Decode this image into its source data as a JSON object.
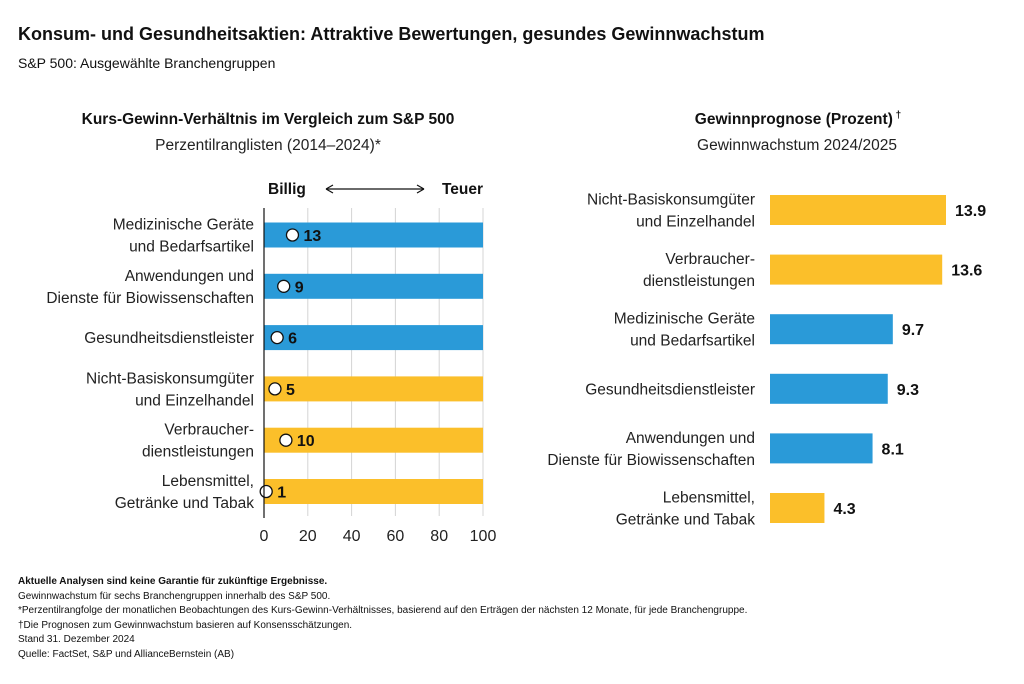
{
  "header": {
    "title": "Konsum- und Gesundheitsaktien: Attraktive Bewertungen, gesundes Gewinnwachstum",
    "subtitle": "S&P 500: Ausgewählte Branchengruppen"
  },
  "colors": {
    "blue": "#2a9ad8",
    "yellow": "#fbbf2a",
    "grid": "#d4d4d4"
  },
  "chart_data": [
    {
      "type": "bar",
      "title": "Kurs-Gewinn-Verhältnis im Vergleich zum S&P 500",
      "subtitle": "Perzentilranglisten (2014–2024)*",
      "scale_left_label": "Billig",
      "scale_right_label": "Teuer",
      "categories": [
        [
          "Medizinische Geräte",
          "und Bedarfsartikel"
        ],
        [
          "Anwendungen und",
          "Dienste für Biowissenschaften"
        ],
        [
          "Gesundheitsdienstleister"
        ],
        [
          "Nicht-Basiskonsumgüter",
          "und Einzelhandel"
        ],
        [
          "Verbraucher-",
          "dienstleistungen"
        ],
        [
          "Lebensmittel,",
          "Getränke und Tabak"
        ]
      ],
      "values": [
        13,
        9,
        6,
        5,
        10,
        1
      ],
      "bar_colors": [
        "blue",
        "blue",
        "blue",
        "yellow",
        "yellow",
        "yellow"
      ],
      "xlim": [
        0,
        100
      ],
      "xticks": [
        0,
        20,
        40,
        60,
        80,
        100
      ],
      "grid": true
    },
    {
      "type": "bar",
      "title": "Gewinnprognose (Prozent)",
      "title_mark": "†",
      "subtitle": "Gewinnwachstum 2024/2025",
      "categories": [
        [
          "Nicht-Basiskonsumgüter",
          "und Einzelhandel"
        ],
        [
          "Verbraucher-",
          "dienstleistungen"
        ],
        [
          "Medizinische Geräte",
          "und Bedarfsartikel"
        ],
        [
          "Gesundheitsdienstleister"
        ],
        [
          "Anwendungen und",
          "Dienste für Biowissenschaften"
        ],
        [
          "Lebensmittel,",
          "Getränke und Tabak"
        ]
      ],
      "values": [
        13.9,
        13.6,
        9.7,
        9.3,
        8.1,
        4.3
      ],
      "bar_colors": [
        "yellow",
        "yellow",
        "blue",
        "blue",
        "blue",
        "yellow"
      ],
      "grid": false
    }
  ],
  "footnotes": [
    "Aktuelle Analysen sind keine Garantie für zukünftige Ergebnisse.",
    "Gewinnwachstum für sechs Branchengruppen innerhalb des S&P 500.",
    "*Perzentilrangfolge der monatlichen Beobachtungen des Kurs-Gewinn-Verhältnisses, basierend auf den Erträgen der nächsten 12 Monate, für jede Branchengruppe.",
    "†Die Prognosen zum Gewinnwachstum basieren auf Konsensschätzungen.",
    "Stand 31. Dezember 2024",
    "Quelle: FactSet, S&P und AllianceBernstein (AB)"
  ]
}
